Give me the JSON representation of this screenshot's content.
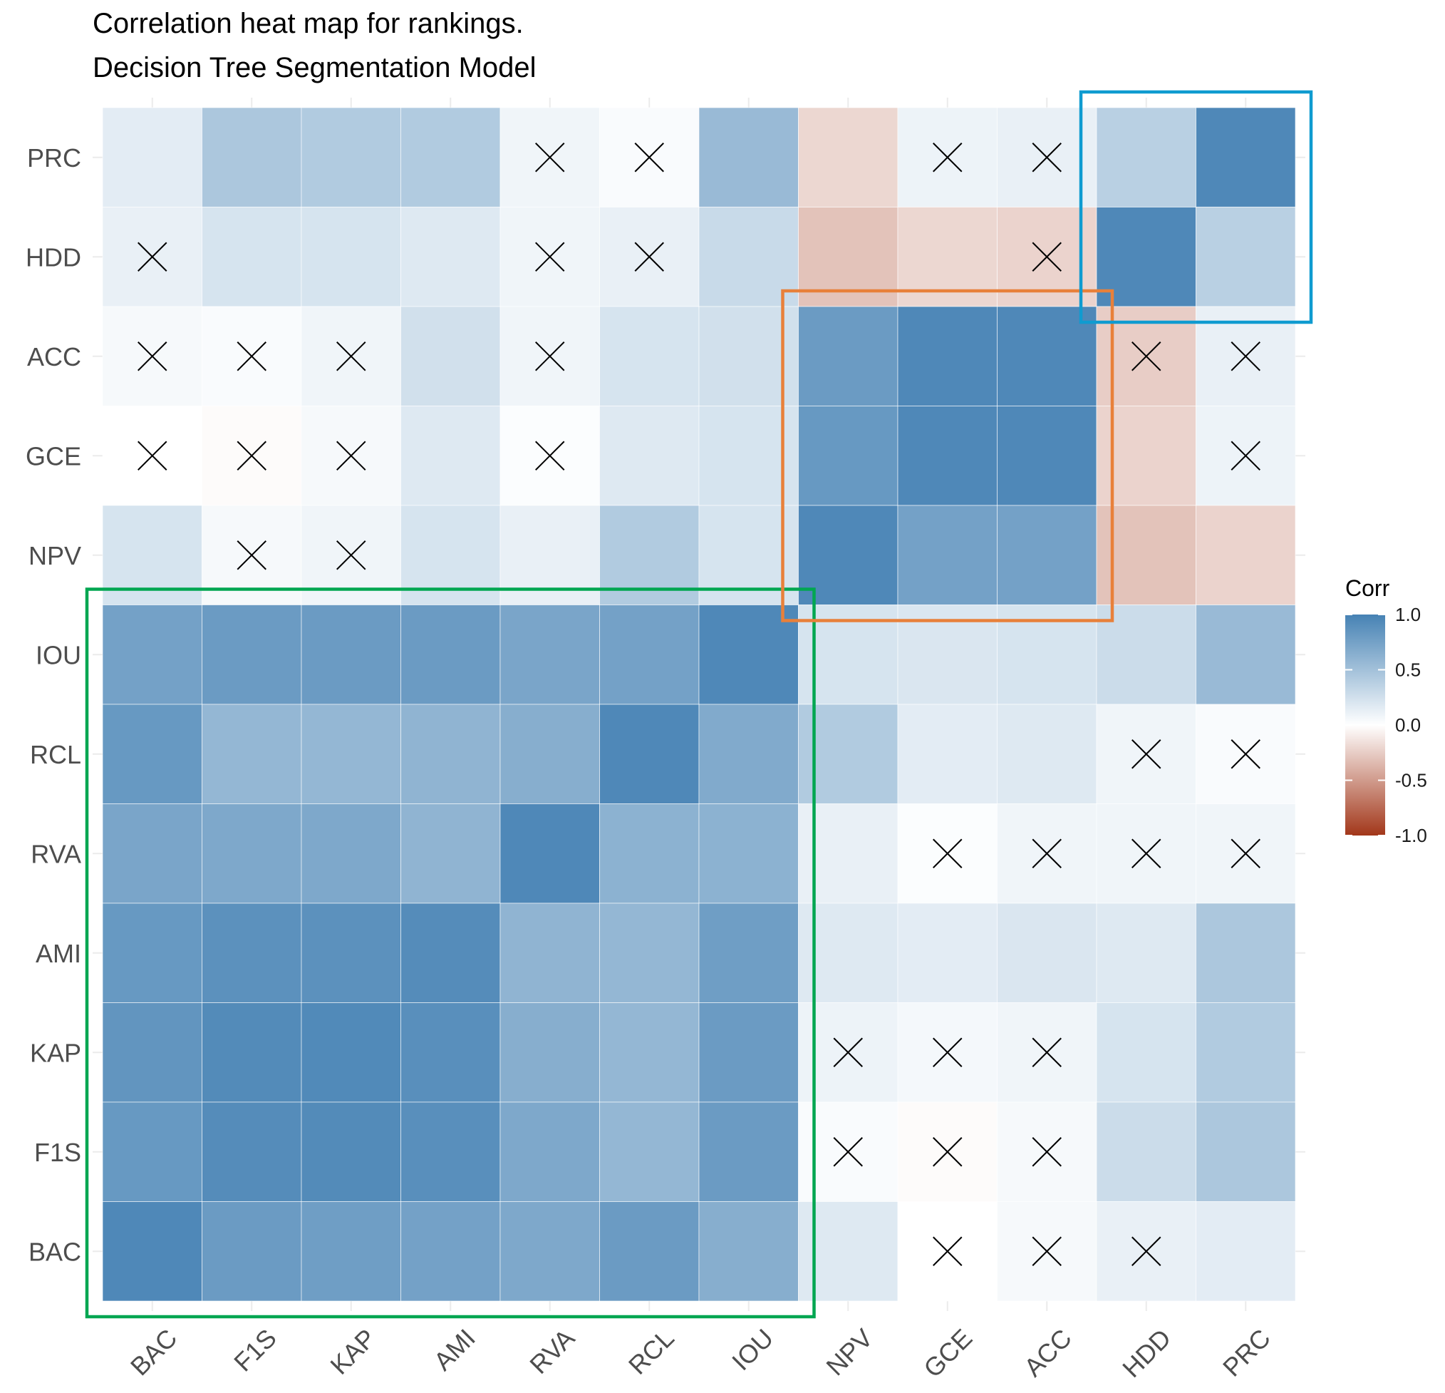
{
  "chart_data": {
    "type": "heatmap",
    "title_lines": [
      "Correlation heat map for rankings.",
      "Decision Tree Segmentation Model"
    ],
    "x_categories": [
      "BAC",
      "F1S",
      "KAP",
      "AMI",
      "RVA",
      "RCL",
      "IOU",
      "NPV",
      "GCE",
      "ACC",
      "HDD",
      "PRC"
    ],
    "y_categories_top_to_bottom": [
      "PRC",
      "HDD",
      "ACC",
      "GCE",
      "NPV",
      "IOU",
      "RCL",
      "RVA",
      "AMI",
      "KAP",
      "F1S",
      "BAC"
    ],
    "values": [
      [
        0.15,
        0.45,
        0.42,
        0.42,
        0.08,
        0.03,
        0.55,
        -0.2,
        0.1,
        0.12,
        0.38,
        0.95
      ],
      [
        0.12,
        0.22,
        0.22,
        0.18,
        0.08,
        0.12,
        0.3,
        -0.3,
        -0.2,
        -0.22,
        0.95,
        0.38
      ],
      [
        0.05,
        0.03,
        0.08,
        0.25,
        0.08,
        0.22,
        0.25,
        0.8,
        0.95,
        0.95,
        -0.25,
        0.12
      ],
      [
        0.0,
        -0.02,
        0.05,
        0.18,
        0.02,
        0.18,
        0.22,
        0.82,
        0.95,
        0.95,
        -0.22,
        0.1
      ],
      [
        0.22,
        0.05,
        0.08,
        0.22,
        0.12,
        0.42,
        0.22,
        0.95,
        0.75,
        0.75,
        -0.3,
        -0.22
      ],
      [
        0.75,
        0.8,
        0.8,
        0.8,
        0.72,
        0.75,
        0.95,
        0.22,
        0.2,
        0.22,
        0.28,
        0.55
      ],
      [
        0.82,
        0.58,
        0.58,
        0.6,
        0.65,
        0.95,
        0.68,
        0.42,
        0.15,
        0.18,
        0.08,
        0.03
      ],
      [
        0.72,
        0.7,
        0.7,
        0.6,
        0.95,
        0.62,
        0.62,
        0.12,
        0.02,
        0.08,
        0.08,
        0.08
      ],
      [
        0.82,
        0.88,
        0.88,
        0.92,
        0.6,
        0.58,
        0.78,
        0.18,
        0.15,
        0.2,
        0.18,
        0.45
      ],
      [
        0.85,
        0.93,
        0.94,
        0.9,
        0.65,
        0.58,
        0.8,
        0.1,
        0.06,
        0.08,
        0.22,
        0.42
      ],
      [
        0.82,
        0.92,
        0.93,
        0.9,
        0.7,
        0.58,
        0.8,
        0.03,
        -0.02,
        0.05,
        0.28,
        0.45
      ],
      [
        0.95,
        0.8,
        0.78,
        0.75,
        0.7,
        0.8,
        0.65,
        0.18,
        0.0,
        0.05,
        0.12,
        0.15
      ]
    ],
    "crossed_cells_row_col": [
      [
        0,
        4
      ],
      [
        0,
        5
      ],
      [
        0,
        8
      ],
      [
        0,
        9
      ],
      [
        1,
        0
      ],
      [
        1,
        4
      ],
      [
        1,
        5
      ],
      [
        1,
        9
      ],
      [
        2,
        0
      ],
      [
        2,
        1
      ],
      [
        2,
        2
      ],
      [
        2,
        4
      ],
      [
        2,
        10
      ],
      [
        2,
        11
      ],
      [
        3,
        0
      ],
      [
        3,
        1
      ],
      [
        3,
        2
      ],
      [
        3,
        4
      ],
      [
        3,
        11
      ],
      [
        4,
        1
      ],
      [
        4,
        2
      ],
      [
        6,
        10
      ],
      [
        6,
        11
      ],
      [
        7,
        8
      ],
      [
        7,
        9
      ],
      [
        7,
        10
      ],
      [
        7,
        11
      ],
      [
        9,
        7
      ],
      [
        9,
        8
      ],
      [
        9,
        9
      ],
      [
        10,
        7
      ],
      [
        10,
        8
      ],
      [
        10,
        9
      ],
      [
        11,
        8
      ],
      [
        11,
        9
      ],
      [
        11,
        10
      ]
    ],
    "color_scale": {
      "low_color": "#a2371a",
      "mid_color": "#ffffff",
      "high_color": "#4682b4",
      "limits": [
        -1.0,
        1.0
      ]
    },
    "legend": {
      "title": "Corr",
      "ticks": [
        1.0,
        0.5,
        0.0,
        -0.5,
        -1.0
      ],
      "tick_labels": [
        "1.0",
        "0.5",
        "0.0",
        "-0.5",
        "-1.0"
      ],
      "placement": "right"
    },
    "highlight_boxes": [
      {
        "color": "#00a651",
        "rows": [
          "IOU",
          "BAC"
        ],
        "cols": [
          "BAC",
          "IOU"
        ]
      },
      {
        "color": "#e8803a",
        "rows": [
          "ACC",
          "NPV"
        ],
        "cols": [
          "NPV",
          "ACC"
        ]
      },
      {
        "color": "#0f9bd0",
        "rows": [
          "PRC",
          "HDD"
        ],
        "cols": [
          "HDD",
          "PRC"
        ]
      }
    ],
    "grid": true
  }
}
